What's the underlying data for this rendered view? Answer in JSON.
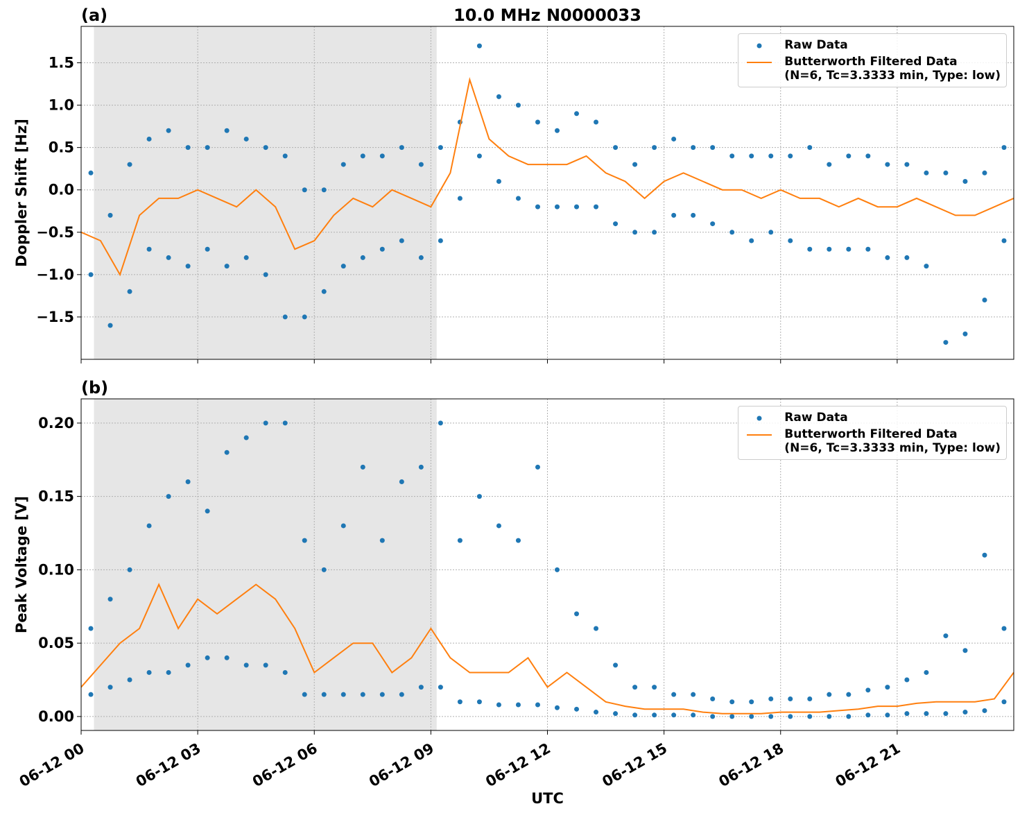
{
  "chart_data": [
    {
      "type": "line",
      "panel_label": "(a)",
      "title": "10.0 MHz N0000033",
      "ylabel": "Doppler Shift [Hz]",
      "xlim": [
        0,
        24
      ],
      "ylim": [
        -2.0,
        1.93
      ],
      "xticks": [
        0,
        3,
        6,
        9,
        12,
        15,
        18,
        21
      ],
      "yticks": [
        {
          "value": -1.5,
          "label": "−1.5"
        },
        {
          "value": -1.0,
          "label": "−1.0"
        },
        {
          "value": -0.5,
          "label": "−0.5"
        },
        {
          "value": 0.0,
          "label": "0.0"
        },
        {
          "value": 0.5,
          "label": "0.5"
        },
        {
          "value": 1.0,
          "label": "1.0"
        },
        {
          "value": 1.5,
          "label": "1.5"
        }
      ],
      "grid": true,
      "legend": "upper right",
      "shaded_span": [
        0.33,
        9.15
      ],
      "shade_color": "#e6e6e6",
      "series": [
        {
          "name": "Raw Data",
          "type": "scatter",
          "color": "#1f77b4",
          "x": [
            0.25,
            0.25,
            0.75,
            0.75,
            1.25,
            1.25,
            1.75,
            1.75,
            2.25,
            2.25,
            2.75,
            2.75,
            3.25,
            3.25,
            3.75,
            3.75,
            4.25,
            4.25,
            4.75,
            4.75,
            5.25,
            5.25,
            5.75,
            5.75,
            6.25,
            6.25,
            6.75,
            6.75,
            7.25,
            7.25,
            7.75,
            7.75,
            8.25,
            8.25,
            8.75,
            8.75,
            9.25,
            9.25,
            9.75,
            9.75,
            10.25,
            10.25,
            10.75,
            10.75,
            11.25,
            11.25,
            11.75,
            11.75,
            12.25,
            12.25,
            12.75,
            12.75,
            13.25,
            13.25,
            13.75,
            13.75,
            14.25,
            14.25,
            14.75,
            14.75,
            15.25,
            15.25,
            15.75,
            15.75,
            16.25,
            16.25,
            16.75,
            16.75,
            17.25,
            17.25,
            17.75,
            17.75,
            18.25,
            18.25,
            18.75,
            18.75,
            19.25,
            19.25,
            19.75,
            19.75,
            20.25,
            20.25,
            20.75,
            20.75,
            21.25,
            21.25,
            21.75,
            21.75,
            22.25,
            22.25,
            22.75,
            22.75,
            23.25,
            23.25,
            23.75,
            23.75
          ],
          "values": [
            0.2,
            -1.0,
            -0.3,
            -1.6,
            0.3,
            -1.2,
            0.6,
            -0.7,
            0.7,
            -0.8,
            0.5,
            -0.9,
            0.5,
            -0.7,
            0.7,
            -0.9,
            0.6,
            -0.8,
            0.5,
            -1.0,
            0.4,
            -1.5,
            0.0,
            -1.5,
            0.0,
            -1.2,
            0.3,
            -0.9,
            0.4,
            -0.8,
            0.4,
            -0.7,
            0.5,
            -0.6,
            0.3,
            -0.8,
            0.5,
            -0.6,
            0.8,
            -0.1,
            1.7,
            0.4,
            1.1,
            0.1,
            1.0,
            -0.1,
            0.8,
            -0.2,
            0.7,
            -0.2,
            0.9,
            -0.2,
            0.8,
            -0.2,
            0.5,
            -0.4,
            0.3,
            -0.5,
            0.5,
            -0.5,
            0.6,
            -0.3,
            0.5,
            -0.3,
            0.5,
            -0.4,
            0.4,
            -0.5,
            0.4,
            -0.6,
            0.4,
            -0.5,
            0.4,
            -0.6,
            0.5,
            -0.7,
            0.3,
            -0.7,
            0.4,
            -0.7,
            0.4,
            -0.7,
            0.3,
            -0.8,
            0.3,
            -0.8,
            0.2,
            -0.9,
            0.2,
            -1.8,
            0.1,
            -1.7,
            0.2,
            -1.3,
            0.5,
            -0.6
          ]
        },
        {
          "name": "Butterworth Filtered Data\n(N=6, Tc=3.3333 min, Type: low)",
          "type": "line",
          "color": "#ff7f0e",
          "x": [
            0,
            0.5,
            1,
            1.5,
            2,
            2.5,
            3,
            3.5,
            4,
            4.5,
            5,
            5.5,
            6,
            6.5,
            7,
            7.5,
            8,
            8.5,
            9,
            9.5,
            10,
            10.5,
            11,
            11.5,
            12,
            12.5,
            13,
            13.5,
            14,
            14.5,
            15,
            15.5,
            16,
            16.5,
            17,
            17.5,
            18,
            18.5,
            19,
            19.5,
            20,
            20.5,
            21,
            21.5,
            22,
            22.5,
            23,
            23.5,
            24
          ],
          "values": [
            -0.5,
            -0.6,
            -1.0,
            -0.3,
            -0.1,
            -0.1,
            0.0,
            -0.1,
            -0.2,
            0.0,
            -0.2,
            -0.7,
            -0.6,
            -0.3,
            -0.1,
            -0.2,
            0.0,
            -0.1,
            -0.2,
            0.2,
            1.3,
            0.6,
            0.4,
            0.3,
            0.3,
            0.3,
            0.4,
            0.2,
            0.1,
            -0.1,
            0.1,
            0.2,
            0.1,
            0.0,
            0.0,
            -0.1,
            0.0,
            -0.1,
            -0.1,
            -0.2,
            -0.1,
            -0.2,
            -0.2,
            -0.1,
            -0.2,
            -0.3,
            -0.3,
            -0.2,
            -0.1
          ]
        }
      ]
    },
    {
      "type": "line",
      "panel_label": "(b)",
      "ylabel": "Peak Voltage [V]",
      "xlabel": "UTC",
      "xlim": [
        0,
        24
      ],
      "ylim": [
        -0.0095,
        0.2165
      ],
      "xticks": [
        {
          "value": 0,
          "label": "06-12 00"
        },
        {
          "value": 3,
          "label": "06-12 03"
        },
        {
          "value": 6,
          "label": "06-12 06"
        },
        {
          "value": 9,
          "label": "06-12 09"
        },
        {
          "value": 12,
          "label": "06-12 12"
        },
        {
          "value": 15,
          "label": "06-12 15"
        },
        {
          "value": 18,
          "label": "06-12 18"
        },
        {
          "value": 21,
          "label": "06-12 21"
        }
      ],
      "yticks": [
        {
          "value": 0.0,
          "label": "0.00"
        },
        {
          "value": 0.05,
          "label": "0.05"
        },
        {
          "value": 0.1,
          "label": "0.10"
        },
        {
          "value": 0.15,
          "label": "0.15"
        },
        {
          "value": 0.2,
          "label": "0.20"
        }
      ],
      "grid": true,
      "legend": "upper right",
      "shaded_span": [
        0.33,
        9.15
      ],
      "shade_color": "#e6e6e6",
      "series": [
        {
          "name": "Raw Data",
          "type": "scatter",
          "color": "#1f77b4",
          "x": [
            0.25,
            0.25,
            0.75,
            0.75,
            1.25,
            1.25,
            1.75,
            1.75,
            2.25,
            2.25,
            2.75,
            2.75,
            3.25,
            3.25,
            3.75,
            3.75,
            4.25,
            4.25,
            4.75,
            4.75,
            5.25,
            5.25,
            5.75,
            5.75,
            6.25,
            6.25,
            6.75,
            6.75,
            7.25,
            7.25,
            7.75,
            7.75,
            8.25,
            8.25,
            8.75,
            8.75,
            9.25,
            9.25,
            9.75,
            9.75,
            10.25,
            10.25,
            10.75,
            10.75,
            11.25,
            11.25,
            11.75,
            11.75,
            12.25,
            12.25,
            12.75,
            12.75,
            13.25,
            13.25,
            13.75,
            13.75,
            14.25,
            14.25,
            14.75,
            14.75,
            15.25,
            15.25,
            15.75,
            15.75,
            16.25,
            16.25,
            16.75,
            16.75,
            17.25,
            17.25,
            17.75,
            17.75,
            18.25,
            18.25,
            18.75,
            18.75,
            19.25,
            19.25,
            19.75,
            19.75,
            20.25,
            20.25,
            20.75,
            20.75,
            21.25,
            21.25,
            21.75,
            21.75,
            22.25,
            22.25,
            22.75,
            22.75,
            23.25,
            23.25,
            23.75,
            23.75
          ],
          "values": [
            0.06,
            0.015,
            0.08,
            0.02,
            0.1,
            0.025,
            0.13,
            0.03,
            0.15,
            0.03,
            0.16,
            0.035,
            0.14,
            0.04,
            0.18,
            0.04,
            0.19,
            0.035,
            0.2,
            0.035,
            0.2,
            0.03,
            0.12,
            0.015,
            0.1,
            0.015,
            0.13,
            0.015,
            0.17,
            0.015,
            0.12,
            0.015,
            0.16,
            0.015,
            0.17,
            0.02,
            0.2,
            0.02,
            0.12,
            0.01,
            0.15,
            0.01,
            0.13,
            0.008,
            0.12,
            0.008,
            0.17,
            0.008,
            0.1,
            0.006,
            0.07,
            0.005,
            0.06,
            0.003,
            0.035,
            0.002,
            0.02,
            0.001,
            0.02,
            0.001,
            0.015,
            0.001,
            0.015,
            0.001,
            0.012,
            0.0,
            0.01,
            0.0,
            0.01,
            0.0,
            0.012,
            0.0,
            0.012,
            0.0,
            0.012,
            0.0,
            0.015,
            0.0,
            0.015,
            0.0,
            0.018,
            0.001,
            0.02,
            0.001,
            0.025,
            0.002,
            0.03,
            0.002,
            0.055,
            0.002,
            0.045,
            0.003,
            0.11,
            0.004,
            0.06,
            0.01
          ]
        },
        {
          "name": "Butterworth Filtered Data\n(N=6, Tc=3.3333 min, Type: low)",
          "type": "line",
          "color": "#ff7f0e",
          "x": [
            0,
            0.5,
            1,
            1.5,
            2,
            2.5,
            3,
            3.5,
            4,
            4.5,
            5,
            5.5,
            6,
            6.5,
            7,
            7.5,
            8,
            8.5,
            9,
            9.5,
            10,
            10.5,
            11,
            11.5,
            12,
            12.5,
            13,
            13.5,
            14,
            14.5,
            15,
            15.5,
            16,
            16.5,
            17,
            17.5,
            18,
            18.5,
            19,
            19.5,
            20,
            20.5,
            21,
            21.5,
            22,
            22.5,
            23,
            23.5,
            24
          ],
          "values": [
            0.02,
            0.035,
            0.05,
            0.06,
            0.09,
            0.06,
            0.08,
            0.07,
            0.08,
            0.09,
            0.08,
            0.06,
            0.03,
            0.04,
            0.05,
            0.05,
            0.03,
            0.04,
            0.06,
            0.04,
            0.03,
            0.03,
            0.03,
            0.04,
            0.02,
            0.03,
            0.02,
            0.01,
            0.007,
            0.005,
            0.005,
            0.005,
            0.003,
            0.002,
            0.002,
            0.002,
            0.003,
            0.003,
            0.003,
            0.004,
            0.005,
            0.007,
            0.007,
            0.009,
            0.01,
            0.01,
            0.01,
            0.012,
            0.03
          ]
        }
      ]
    }
  ]
}
